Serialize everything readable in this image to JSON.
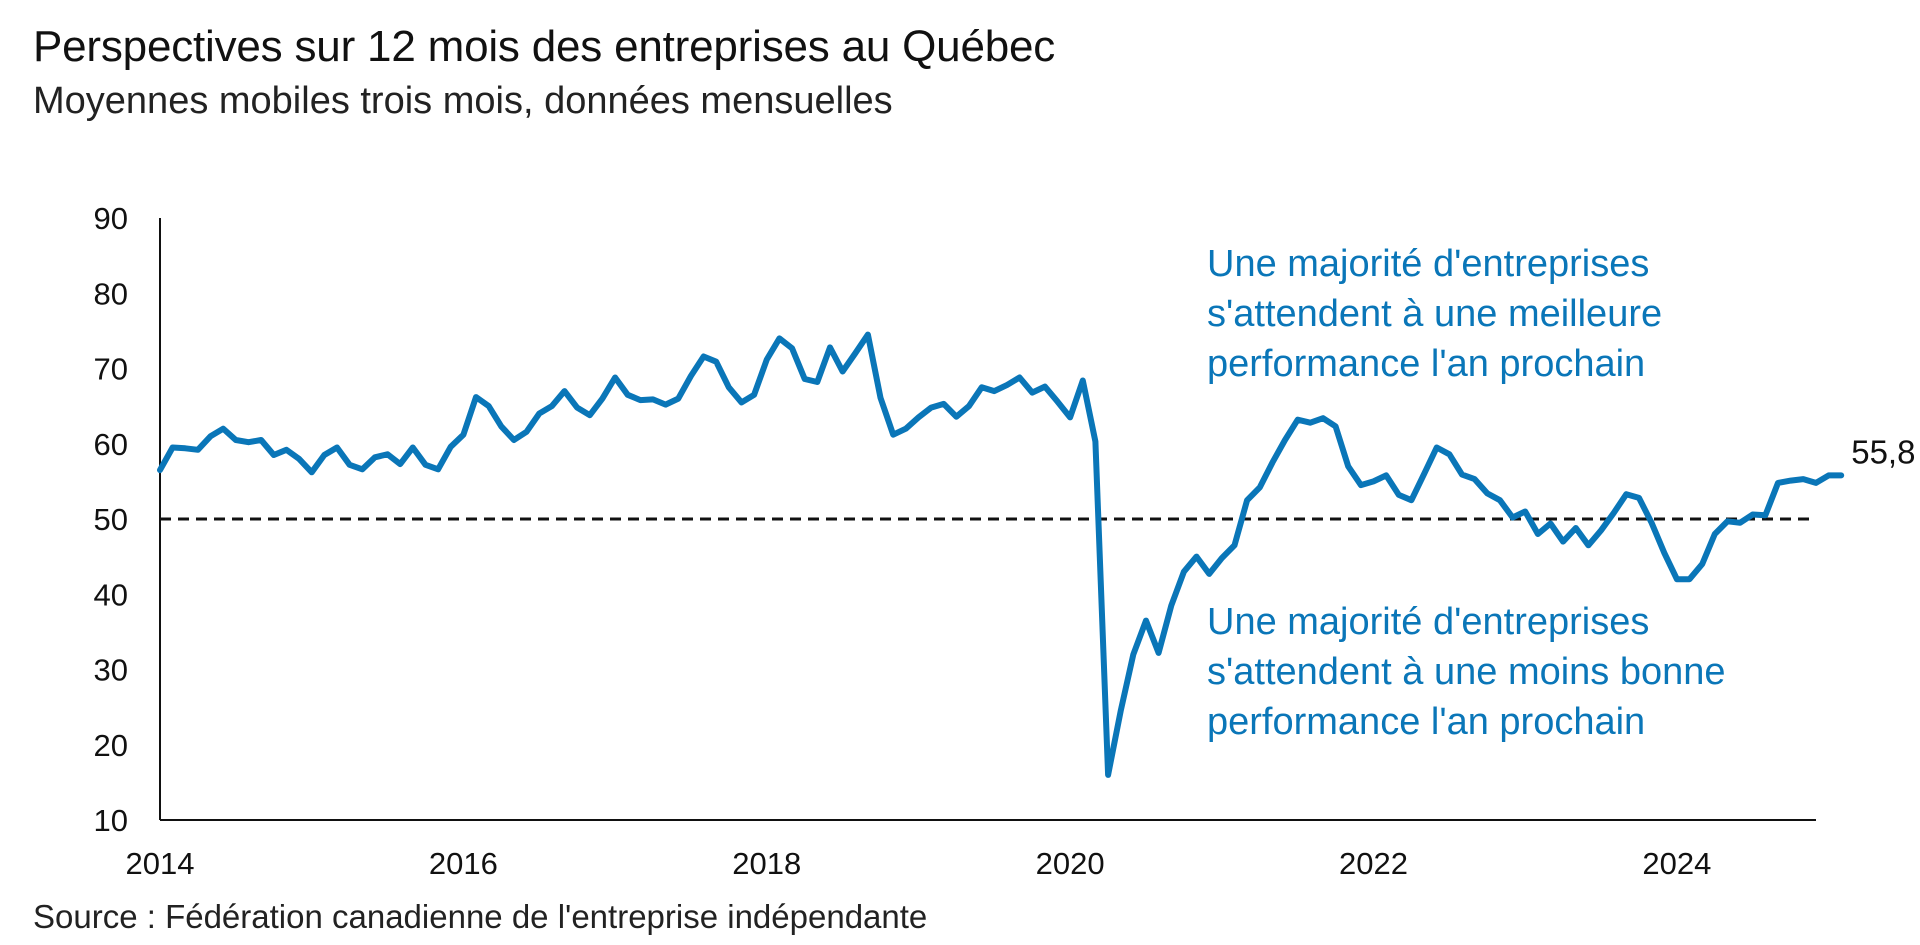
{
  "title": "Perspectives sur 12 mois des entreprises au Québec",
  "subtitle": "Moyennes mobiles trois mois, données mensuelles",
  "source": "Source : Fédération canadienne de l'entreprise indépendante",
  "colors": {
    "series": "#0A76B8",
    "annotation": "#0A76B8",
    "axis": "#111111",
    "reference": "#111111"
  },
  "chart_data": {
    "type": "line",
    "title": "Perspectives sur 12 mois des entreprises au Québec",
    "subtitle": "Moyennes mobiles trois mois, données mensuelles",
    "xlabel": "",
    "ylabel": "",
    "xlim": [
      2014,
      2024.917
    ],
    "ylim": [
      10,
      90
    ],
    "yticks": [
      90,
      80,
      70,
      60,
      50,
      40,
      30,
      20,
      10
    ],
    "xticks": [
      2014,
      2016,
      2018,
      2020,
      2022,
      2024
    ],
    "xtick_labels": [
      "2014",
      "2016",
      "2018",
      "2020",
      "2022",
      "2024"
    ],
    "grid": false,
    "legend": "none",
    "reference_line": {
      "y": 50,
      "style": "dashed"
    },
    "annotations": [
      {
        "lines": [
          "Une majorité d'entreprises",
          "s'attendent à une meilleure",
          "performance l'an prochain"
        ]
      },
      {
        "lines": [
          "Une majorité d'entreprises",
          "s'attendent à une moins bonne",
          "performance l'an prochain"
        ]
      }
    ],
    "end_label": "55,8",
    "series": [
      {
        "x_start": 2014,
        "x_step_months": 1,
        "values": [
          56.5,
          59.5,
          59.4,
          59.2,
          61,
          62,
          60.5,
          60.2,
          60.5,
          58.5,
          59.2,
          58,
          56.2,
          58.5,
          59.5,
          57.2,
          56.6,
          58.2,
          58.6,
          57.3,
          59.5,
          57.2,
          56.6,
          59.6,
          61.2,
          66.2,
          65,
          62.3,
          60.5,
          61.6,
          64,
          65,
          67,
          64.8,
          63.8,
          66,
          68.8,
          66.5,
          65.8,
          65.9,
          65.2,
          66,
          69,
          71.6,
          70.9,
          67.5,
          65.5,
          66.5,
          71.2,
          74,
          72.7,
          68.6,
          68.2,
          72.8,
          69.6,
          72,
          74.5,
          66.1,
          61.2,
          62,
          63.5,
          64.8,
          65.3,
          63.6,
          65,
          67.5,
          67,
          67.8,
          68.8,
          66.8,
          67.6,
          65.6,
          63.5,
          68.4,
          60.3,
          16,
          24.5,
          32,
          36.5,
          32.2,
          38.5,
          43,
          45,
          42.7,
          44.8,
          46.5,
          52.5,
          54.2,
          57.5,
          60.5,
          63.2,
          62.8,
          63.4,
          62.3,
          57,
          54.5,
          55,
          55.8,
          53.2,
          52.5,
          56,
          59.5,
          58.6,
          55.9,
          55.3,
          53.4,
          52.5,
          50.2,
          51,
          48,
          49.4,
          47,
          48.8,
          46.5,
          48.5,
          50.8,
          53.3,
          52.8,
          49.5,
          45.5,
          42,
          42,
          44,
          48,
          49.7,
          49.5,
          50.6,
          50.5,
          54.8,
          55.1,
          55.3,
          54.8,
          55.8,
          55.8
        ]
      }
    ]
  }
}
